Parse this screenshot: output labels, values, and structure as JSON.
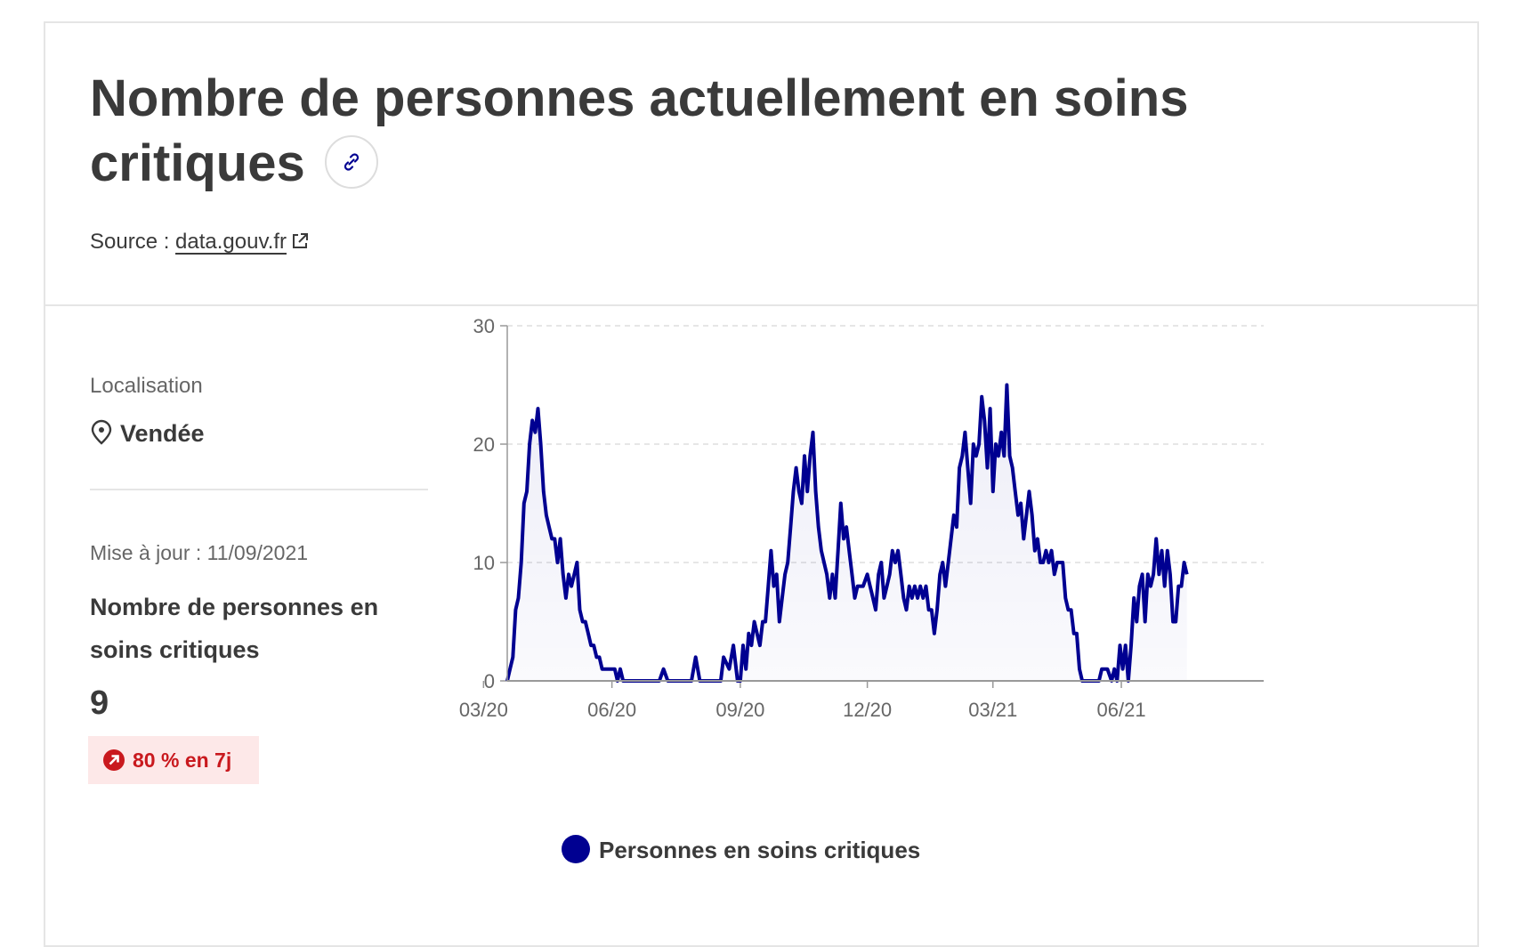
{
  "header": {
    "title": "Nombre de personnes actuellement en soins critiques",
    "source_prefix": "Source : ",
    "source_link": "data.gouv.fr"
  },
  "location": {
    "label": "Localisation",
    "value": "Vendée"
  },
  "indicator": {
    "updated": "Mise à jour : 11/09/2021",
    "name": "Nombre de personnes en soins critiques",
    "value": "9",
    "change_badge": "80 % en 7j"
  },
  "colors": {
    "series": "#000091",
    "badge_text": "#c9191e",
    "badge_bg": "#fde8e8"
  },
  "icons": {
    "link": "link-icon",
    "external": "external-link-icon",
    "location": "map-pin-icon",
    "trend": "arrow-up-right-icon"
  },
  "chart_data": {
    "type": "area",
    "x_tick_labels": [
      "03/20",
      "06/20",
      "09/20",
      "12/20",
      "03/21",
      "06/21"
    ],
    "y_ticks": [
      0,
      10,
      20,
      30
    ],
    "ylim": [
      0,
      30
    ],
    "xlim": [
      "2020-03-18",
      "2021-09-11"
    ],
    "grid": "horizontal dashed",
    "legend_position": "bottom",
    "series": [
      {
        "name": "Personnes en soins critiques",
        "points": [
          [
            "2020-03-18",
            0
          ],
          [
            "2020-03-20",
            1
          ],
          [
            "2020-03-22",
            2
          ],
          [
            "2020-03-24",
            6
          ],
          [
            "2020-03-26",
            7
          ],
          [
            "2020-03-28",
            10
          ],
          [
            "2020-03-30",
            15
          ],
          [
            "2020-04-01",
            16
          ],
          [
            "2020-04-03",
            20
          ],
          [
            "2020-04-05",
            22
          ],
          [
            "2020-04-07",
            21
          ],
          [
            "2020-04-09",
            23
          ],
          [
            "2020-04-11",
            20
          ],
          [
            "2020-04-13",
            16
          ],
          [
            "2020-04-15",
            14
          ],
          [
            "2020-04-17",
            13
          ],
          [
            "2020-04-19",
            12
          ],
          [
            "2020-04-21",
            12
          ],
          [
            "2020-04-23",
            10
          ],
          [
            "2020-04-25",
            12
          ],
          [
            "2020-04-27",
            9
          ],
          [
            "2020-04-29",
            7
          ],
          [
            "2020-05-01",
            9
          ],
          [
            "2020-05-03",
            8
          ],
          [
            "2020-05-05",
            9
          ],
          [
            "2020-05-07",
            10
          ],
          [
            "2020-05-09",
            6
          ],
          [
            "2020-05-11",
            5
          ],
          [
            "2020-05-13",
            5
          ],
          [
            "2020-05-15",
            4
          ],
          [
            "2020-05-17",
            3
          ],
          [
            "2020-05-19",
            3
          ],
          [
            "2020-05-21",
            2
          ],
          [
            "2020-05-23",
            2
          ],
          [
            "2020-05-25",
            1
          ],
          [
            "2020-05-27",
            1
          ],
          [
            "2020-05-29",
            1
          ],
          [
            "2020-06-01",
            1
          ],
          [
            "2020-06-03",
            1
          ],
          [
            "2020-06-05",
            0
          ],
          [
            "2020-06-07",
            1
          ],
          [
            "2020-06-09",
            0
          ],
          [
            "2020-06-15",
            0
          ],
          [
            "2020-06-25",
            0
          ],
          [
            "2020-07-05",
            0
          ],
          [
            "2020-07-08",
            1
          ],
          [
            "2020-07-11",
            0
          ],
          [
            "2020-07-20",
            0
          ],
          [
            "2020-07-28",
            0
          ],
          [
            "2020-07-31",
            2
          ],
          [
            "2020-08-03",
            0
          ],
          [
            "2020-08-10",
            0
          ],
          [
            "2020-08-18",
            0
          ],
          [
            "2020-08-20",
            2
          ],
          [
            "2020-08-24",
            1
          ],
          [
            "2020-08-27",
            3
          ],
          [
            "2020-08-30",
            0
          ],
          [
            "2020-09-01",
            0
          ],
          [
            "2020-09-03",
            3
          ],
          [
            "2020-09-05",
            1
          ],
          [
            "2020-09-07",
            4
          ],
          [
            "2020-09-09",
            3
          ],
          [
            "2020-09-11",
            5
          ],
          [
            "2020-09-13",
            4
          ],
          [
            "2020-09-15",
            3
          ],
          [
            "2020-09-17",
            5
          ],
          [
            "2020-09-19",
            5
          ],
          [
            "2020-09-21",
            8
          ],
          [
            "2020-09-23",
            11
          ],
          [
            "2020-09-25",
            8
          ],
          [
            "2020-09-27",
            9
          ],
          [
            "2020-09-29",
            5
          ],
          [
            "2020-10-01",
            7
          ],
          [
            "2020-10-03",
            9
          ],
          [
            "2020-10-05",
            10
          ],
          [
            "2020-10-07",
            13
          ],
          [
            "2020-10-09",
            16
          ],
          [
            "2020-10-11",
            18
          ],
          [
            "2020-10-13",
            16
          ],
          [
            "2020-10-15",
            15
          ],
          [
            "2020-10-17",
            19
          ],
          [
            "2020-10-19",
            16
          ],
          [
            "2020-10-21",
            19
          ],
          [
            "2020-10-23",
            21
          ],
          [
            "2020-10-25",
            16
          ],
          [
            "2020-10-27",
            13
          ],
          [
            "2020-10-29",
            11
          ],
          [
            "2020-10-31",
            10
          ],
          [
            "2020-11-02",
            9
          ],
          [
            "2020-11-04",
            7
          ],
          [
            "2020-11-06",
            9
          ],
          [
            "2020-11-08",
            7
          ],
          [
            "2020-11-10",
            11
          ],
          [
            "2020-11-12",
            15
          ],
          [
            "2020-11-14",
            12
          ],
          [
            "2020-11-16",
            13
          ],
          [
            "2020-11-18",
            11
          ],
          [
            "2020-11-20",
            9
          ],
          [
            "2020-11-22",
            7
          ],
          [
            "2020-11-24",
            8
          ],
          [
            "2020-11-26",
            8
          ],
          [
            "2020-11-28",
            8
          ],
          [
            "2020-12-01",
            9
          ],
          [
            "2020-12-03",
            8
          ],
          [
            "2020-12-05",
            7
          ],
          [
            "2020-12-07",
            6
          ],
          [
            "2020-12-09",
            9
          ],
          [
            "2020-12-11",
            10
          ],
          [
            "2020-12-13",
            7
          ],
          [
            "2020-12-15",
            8
          ],
          [
            "2020-12-17",
            9
          ],
          [
            "2020-12-19",
            11
          ],
          [
            "2020-12-21",
            10
          ],
          [
            "2020-12-23",
            11
          ],
          [
            "2020-12-25",
            9
          ],
          [
            "2020-12-27",
            7
          ],
          [
            "2020-12-29",
            6
          ],
          [
            "2020-12-31",
            8
          ],
          [
            "2021-01-02",
            7
          ],
          [
            "2021-01-04",
            8
          ],
          [
            "2021-01-06",
            7
          ],
          [
            "2021-01-08",
            8
          ],
          [
            "2021-01-10",
            7
          ],
          [
            "2021-01-12",
            8
          ],
          [
            "2021-01-14",
            6
          ],
          [
            "2021-01-16",
            6
          ],
          [
            "2021-01-18",
            4
          ],
          [
            "2021-01-20",
            6
          ],
          [
            "2021-01-22",
            9
          ],
          [
            "2021-01-24",
            10
          ],
          [
            "2021-01-26",
            8
          ],
          [
            "2021-01-28",
            10
          ],
          [
            "2021-01-30",
            12
          ],
          [
            "2021-02-01",
            14
          ],
          [
            "2021-02-03",
            13
          ],
          [
            "2021-02-05",
            18
          ],
          [
            "2021-02-07",
            19
          ],
          [
            "2021-02-09",
            21
          ],
          [
            "2021-02-11",
            18
          ],
          [
            "2021-02-13",
            15
          ],
          [
            "2021-02-15",
            20
          ],
          [
            "2021-02-17",
            19
          ],
          [
            "2021-02-19",
            20
          ],
          [
            "2021-02-21",
            24
          ],
          [
            "2021-02-23",
            22
          ],
          [
            "2021-02-25",
            18
          ],
          [
            "2021-02-27",
            23
          ],
          [
            "2021-03-01",
            16
          ],
          [
            "2021-03-03",
            20
          ],
          [
            "2021-03-05",
            19
          ],
          [
            "2021-03-07",
            21
          ],
          [
            "2021-03-09",
            19
          ],
          [
            "2021-03-11",
            25
          ],
          [
            "2021-03-13",
            19
          ],
          [
            "2021-03-15",
            18
          ],
          [
            "2021-03-17",
            16
          ],
          [
            "2021-03-19",
            14
          ],
          [
            "2021-03-21",
            15
          ],
          [
            "2021-03-23",
            12
          ],
          [
            "2021-03-25",
            14
          ],
          [
            "2021-03-27",
            16
          ],
          [
            "2021-03-29",
            14
          ],
          [
            "2021-03-31",
            11
          ],
          [
            "2021-04-02",
            12
          ],
          [
            "2021-04-04",
            10
          ],
          [
            "2021-04-06",
            10
          ],
          [
            "2021-04-08",
            11
          ],
          [
            "2021-04-10",
            10
          ],
          [
            "2021-04-12",
            11
          ],
          [
            "2021-04-14",
            9
          ],
          [
            "2021-04-16",
            10
          ],
          [
            "2021-04-18",
            10
          ],
          [
            "2021-04-20",
            10
          ],
          [
            "2021-04-22",
            7
          ],
          [
            "2021-04-24",
            6
          ],
          [
            "2021-04-26",
            6
          ],
          [
            "2021-04-28",
            4
          ],
          [
            "2021-04-30",
            4
          ],
          [
            "2021-05-02",
            1
          ],
          [
            "2021-05-04",
            0
          ],
          [
            "2021-05-08",
            0
          ],
          [
            "2021-05-12",
            0
          ],
          [
            "2021-05-16",
            0
          ],
          [
            "2021-05-18",
            1
          ],
          [
            "2021-05-22",
            1
          ],
          [
            "2021-05-25",
            0
          ],
          [
            "2021-05-27",
            1
          ],
          [
            "2021-05-29",
            0
          ],
          [
            "2021-05-31",
            3
          ],
          [
            "2021-06-02",
            1
          ],
          [
            "2021-06-04",
            3
          ],
          [
            "2021-06-06",
            0
          ],
          [
            "2021-06-08",
            3
          ],
          [
            "2021-06-10",
            7
          ],
          [
            "2021-06-12",
            5
          ],
          [
            "2021-06-14",
            8
          ],
          [
            "2021-06-16",
            9
          ],
          [
            "2021-06-18",
            5
          ],
          [
            "2021-06-20",
            9
          ],
          [
            "2021-06-22",
            8
          ],
          [
            "2021-06-24",
            9
          ],
          [
            "2021-06-26",
            12
          ],
          [
            "2021-06-28",
            9
          ],
          [
            "2021-06-30",
            11
          ],
          [
            "2021-07-02",
            8
          ],
          [
            "2021-07-04",
            11
          ],
          [
            "2021-07-06",
            9
          ],
          [
            "2021-07-08",
            5
          ],
          [
            "2021-07-10",
            5
          ],
          [
            "2021-07-12",
            8
          ],
          [
            "2021-07-14",
            8
          ],
          [
            "2021-07-16",
            10
          ],
          [
            "2021-07-18",
            9
          ]
        ]
      }
    ]
  }
}
